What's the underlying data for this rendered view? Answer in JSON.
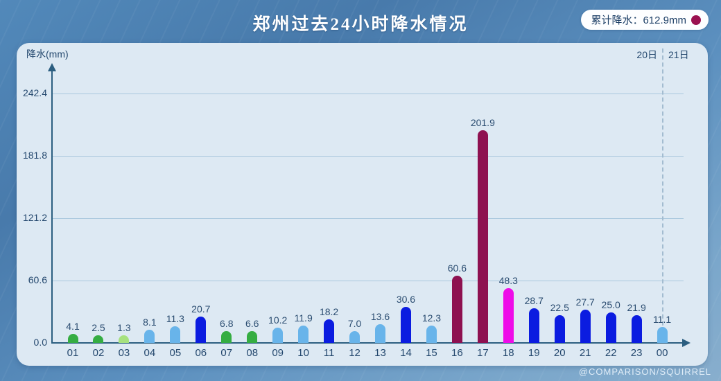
{
  "header": {
    "title": "郑州过去24小时降水情况",
    "legend": {
      "label": "累计降水：612.9mm",
      "dot_color": "#9b1150"
    }
  },
  "chart_data": {
    "type": "bar",
    "title": "郑州过去24小时降水情况",
    "ylabel": "降水(mm)",
    "ylim": [
      0,
      265
    ],
    "grid": true,
    "y_ticks": [
      0.0,
      60.6,
      121.2,
      181.8,
      242.4
    ],
    "y_tick_labels": [
      "0.0",
      "60.6",
      "121.2",
      "181.8",
      "242.4"
    ],
    "categories": [
      "01",
      "02",
      "03",
      "04",
      "05",
      "06",
      "07",
      "08",
      "09",
      "10",
      "11",
      "12",
      "13",
      "14",
      "15",
      "16",
      "17",
      "18",
      "19",
      "20",
      "21",
      "22",
      "23",
      "00"
    ],
    "values": [
      4.1,
      2.5,
      1.3,
      8.1,
      11.3,
      20.7,
      6.8,
      6.6,
      10.2,
      11.9,
      18.2,
      7.0,
      13.6,
      30.6,
      12.3,
      60.6,
      201.9,
      48.3,
      28.7,
      22.5,
      27.7,
      25.0,
      21.9,
      11.1
    ],
    "value_labels": [
      "4.1",
      "2.5",
      "1.3",
      "8.1",
      "11.3",
      "20.7",
      "6.8",
      "6.6",
      "10.2",
      "11.9",
      "18.2",
      "7.0",
      "13.6",
      "30.6",
      "12.3",
      "60.6",
      "201.9",
      "48.3",
      "28.7",
      "22.5",
      "27.7",
      "25.0",
      "21.9",
      "11.1"
    ],
    "bar_color_keys": [
      "green",
      "green",
      "light_green",
      "light_blue",
      "light_blue",
      "blue",
      "green",
      "green",
      "light_blue",
      "light_blue",
      "blue",
      "light_blue",
      "light_blue",
      "blue",
      "light_blue",
      "maroon",
      "maroon",
      "magenta",
      "blue",
      "blue",
      "blue",
      "blue",
      "blue",
      "light_blue"
    ],
    "cumulative_total_label": "累计降水：612.9mm",
    "day_markers": {
      "left": "20日",
      "right": "21日",
      "separator_at_category": "00"
    },
    "legend_position": "top-right"
  },
  "colors": {
    "palette": {
      "green": "#35ad42",
      "light_green": "#a6e17e",
      "light_blue": "#68b4ea",
      "blue": "#0b1ce0",
      "magenta": "#ee0ce8",
      "maroon": "#8e1150"
    },
    "panel_bg": "#dde9f3",
    "axis": "#2b5e80",
    "grid": "#a9c7dd",
    "text": "#24486e",
    "legend_dot": "#9b1150"
  },
  "watermark": "@COMPARISON/SQUIRREL"
}
